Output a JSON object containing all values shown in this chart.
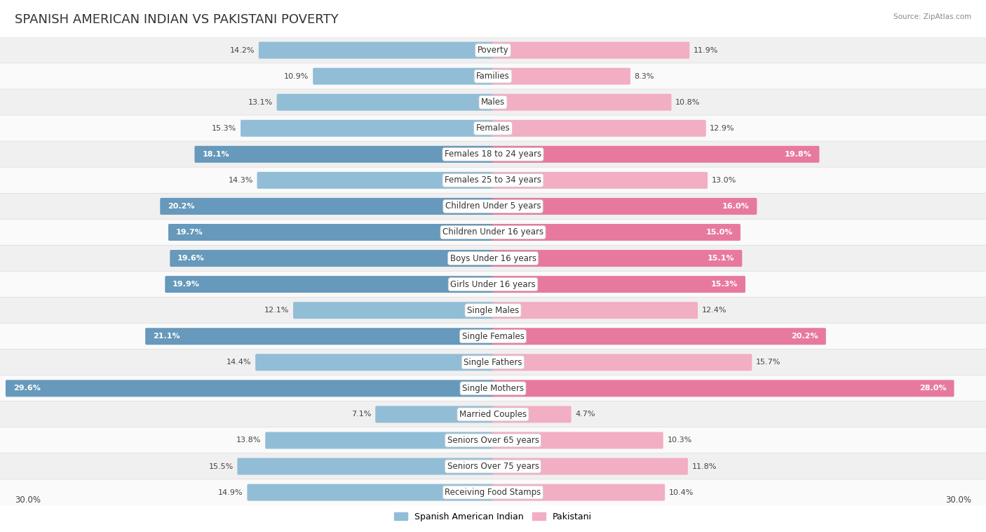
{
  "title": "SPANISH AMERICAN INDIAN VS PAKISTANI POVERTY",
  "source": "Source: ZipAtlas.com",
  "categories": [
    "Poverty",
    "Families",
    "Males",
    "Females",
    "Females 18 to 24 years",
    "Females 25 to 34 years",
    "Children Under 5 years",
    "Children Under 16 years",
    "Boys Under 16 years",
    "Girls Under 16 years",
    "Single Males",
    "Single Females",
    "Single Fathers",
    "Single Mothers",
    "Married Couples",
    "Seniors Over 65 years",
    "Seniors Over 75 years",
    "Receiving Food Stamps"
  ],
  "left_values": [
    14.2,
    10.9,
    13.1,
    15.3,
    18.1,
    14.3,
    20.2,
    19.7,
    19.6,
    19.9,
    12.1,
    21.1,
    14.4,
    29.6,
    7.1,
    13.8,
    15.5,
    14.9
  ],
  "right_values": [
    11.9,
    8.3,
    10.8,
    12.9,
    19.8,
    13.0,
    16.0,
    15.0,
    15.1,
    15.3,
    12.4,
    20.2,
    15.7,
    28.0,
    4.7,
    10.3,
    11.8,
    10.4
  ],
  "left_color_normal": "#92bdd6",
  "left_color_highlight": "#6699bb",
  "right_color_normal": "#f2aec2",
  "right_color_highlight": "#e8799e",
  "left_label": "Spanish American Indian",
  "right_label": "Pakistani",
  "axis_max": 30.0,
  "highlight_rows": [
    4,
    6,
    7,
    8,
    9,
    11,
    13
  ],
  "title_fontsize": 13,
  "cat_fontsize": 8.5,
  "value_fontsize": 8.0
}
